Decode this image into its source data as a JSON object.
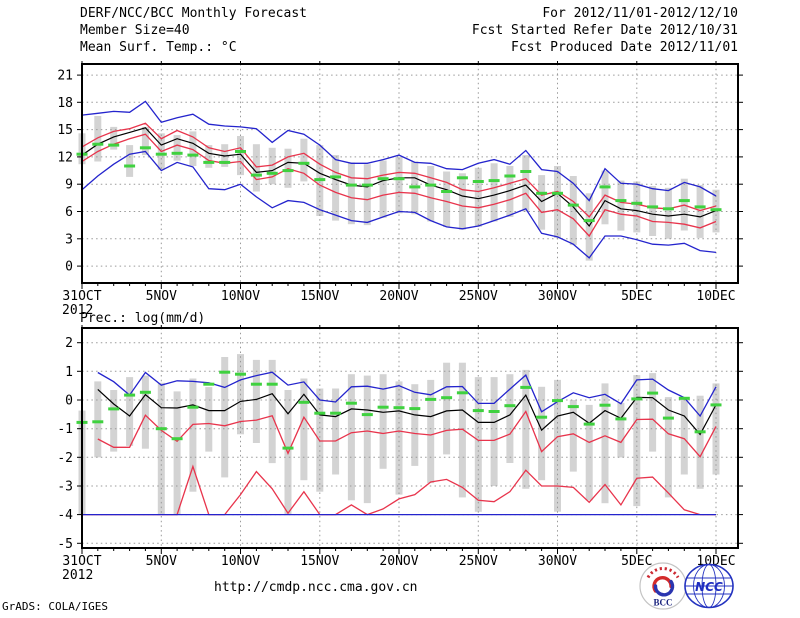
{
  "header": {
    "left": [
      "DERF/NCC/BCC Monthly Forecast",
      "Member Size=40",
      "Mean Surf. Temp.: °C"
    ],
    "right": [
      "For 2012/11/01-2012/12/10",
      "Fcst Started Refer Date 2012/10/31",
      "Fcst Produced Date 2012/11/01"
    ]
  },
  "footer": {
    "url": "http://cmdp.ncc.cma.gov.cn",
    "credit": "GrADS: COLA/IGES",
    "logos": {
      "bcc": "BCC",
      "ncc": "NCC"
    }
  },
  "colors": {
    "blue": "#2424cd",
    "red": "#e8344c",
    "black": "#000000",
    "green": "#3fd13f",
    "bar": "#d3d3d3",
    "grid": "#9a9a9a",
    "frame": "#000000"
  },
  "chart_data": [
    {
      "type": "line",
      "title": "Mean Surf. Temp.: °C",
      "ylabel": "Mean Surf. Temp.: °C",
      "xlabel": "2012  31OCT - 10DEC",
      "ylim": [
        -1.9,
        22.2
      ],
      "grid": true,
      "y_ticks": [
        21,
        18,
        15,
        12,
        9,
        6,
        3,
        0
      ],
      "x_ticks": [
        {
          "day": 0,
          "label": "31OCT",
          "sublabel": "2012"
        },
        {
          "day": 5,
          "label": "5NOV"
        },
        {
          "day": 10,
          "label": "10NOV"
        },
        {
          "day": 15,
          "label": "15NOV"
        },
        {
          "day": 20,
          "label": "20NOV"
        },
        {
          "day": 25,
          "label": "25NOV"
        },
        {
          "day": 30,
          "label": "30NOV"
        },
        {
          "day": 35,
          "label": "5DEC"
        },
        {
          "day": 40,
          "label": "10DEC"
        }
      ],
      "series": [
        {
          "name": "member-max",
          "color": "blue",
          "values": [
            16.6,
            16.8,
            17.0,
            16.9,
            18.1,
            15.8,
            16.3,
            16.7,
            15.6,
            15.4,
            15.3,
            15.1,
            13.6,
            14.9,
            14.5,
            13.3,
            11.7,
            11.3,
            11.3,
            11.7,
            12.2,
            11.4,
            11.3,
            10.7,
            10.6,
            11.3,
            11.7,
            11.2,
            12.7,
            10.6,
            10.4,
            9.1,
            7.2,
            10.7,
            9.1,
            9.0,
            8.5,
            8.3,
            9.2,
            8.7,
            7.7
          ]
        },
        {
          "name": "mean-plus-spread",
          "color": "red",
          "values": [
            13.1,
            14.1,
            14.8,
            15.1,
            15.7,
            14.0,
            14.9,
            14.2,
            13.0,
            12.6,
            13.0,
            10.9,
            11.1,
            12.0,
            12.4,
            11.2,
            10.3,
            9.7,
            9.6,
            10.0,
            10.3,
            10.2,
            9.7,
            9.2,
            8.4,
            8.2,
            8.6,
            9.1,
            9.6,
            7.8,
            8.2,
            7.1,
            5.4,
            7.8,
            7.0,
            6.8,
            6.4,
            6.3,
            6.7,
            6.1,
            6.6
          ]
        },
        {
          "name": "ensemble-mean",
          "color": "black",
          "values": [
            12.2,
            13.4,
            14.2,
            14.7,
            15.2,
            13.3,
            14.0,
            13.5,
            12.4,
            12.1,
            12.3,
            10.3,
            10.5,
            11.4,
            11.3,
            10.2,
            9.5,
            8.9,
            8.7,
            9.4,
            9.7,
            9.7,
            8.9,
            8.4,
            7.7,
            7.4,
            7.8,
            8.3,
            8.9,
            7.1,
            8.0,
            6.5,
            4.4,
            7.2,
            6.3,
            6.1,
            5.7,
            5.5,
            5.7,
            5.4,
            6.1
          ]
        },
        {
          "name": "mean-minus-spread",
          "color": "red",
          "values": [
            11.5,
            12.6,
            13.4,
            14.0,
            14.5,
            12.6,
            13.3,
            12.8,
            11.6,
            11.3,
            11.5,
            9.5,
            9.8,
            10.7,
            10.2,
            8.9,
            8.1,
            7.5,
            7.3,
            7.8,
            8.1,
            8.0,
            7.5,
            7.1,
            6.6,
            6.4,
            6.8,
            7.3,
            8.0,
            5.9,
            6.2,
            5.2,
            3.3,
            6.2,
            5.7,
            5.5,
            4.9,
            4.8,
            4.6,
            4.2,
            4.9
          ]
        },
        {
          "name": "member-min",
          "color": "blue",
          "values": [
            8.4,
            9.9,
            11.2,
            12.3,
            12.6,
            10.5,
            11.4,
            10.9,
            8.5,
            8.4,
            9.0,
            7.6,
            6.4,
            7.2,
            7.0,
            6.2,
            5.6,
            5.0,
            4.8,
            5.4,
            6.0,
            5.9,
            5.0,
            4.3,
            4.1,
            4.4,
            5.0,
            5.6,
            6.3,
            3.6,
            3.2,
            2.4,
            0.9,
            3.3,
            3.3,
            2.9,
            2.4,
            2.3,
            2.5,
            1.7,
            1.5
          ]
        }
      ],
      "observation_dashes": {
        "name": "observation",
        "color": "green",
        "values": [
          12.3,
          13.4,
          13.3,
          11.0,
          13.0,
          12.3,
          12.4,
          12.2,
          11.4,
          11.4,
          12.6,
          10.0,
          10.2,
          10.5,
          11.3,
          9.5,
          9.8,
          8.9,
          8.9,
          9.6,
          9.6,
          8.7,
          8.9,
          8.2,
          9.7,
          9.3,
          9.4,
          9.9,
          10.4,
          8.0,
          8.0,
          6.7,
          5.0,
          8.7,
          7.2,
          6.9,
          6.5,
          6.3,
          7.2,
          6.5,
          6.2
        ]
      },
      "spread_bars": {
        "name": "member-spread-bar",
        "color": "bar",
        "ranges": [
          [
            11.2,
            14.6
          ],
          [
            11.5,
            16.5
          ],
          [
            12.8,
            15.3
          ],
          [
            9.8,
            13.3
          ],
          [
            12.2,
            15.3
          ],
          [
            10.6,
            14.6
          ],
          [
            11.6,
            14.4
          ],
          [
            11.0,
            14.8
          ],
          [
            10.8,
            13.3
          ],
          [
            10.9,
            13.4
          ],
          [
            10.0,
            14.3
          ],
          [
            8.2,
            13.4
          ],
          [
            9.0,
            13.0
          ],
          [
            8.6,
            12.9
          ],
          [
            9.3,
            14.0
          ],
          [
            5.5,
            13.3
          ],
          [
            5.0,
            12.2
          ],
          [
            4.6,
            11.4
          ],
          [
            4.5,
            11.2
          ],
          [
            5.3,
            11.6
          ],
          [
            5.8,
            12.0
          ],
          [
            5.7,
            11.5
          ],
          [
            4.9,
            11.0
          ],
          [
            4.3,
            10.4
          ],
          [
            4.0,
            10.2
          ],
          [
            4.3,
            10.8
          ],
          [
            4.9,
            11.3
          ],
          [
            5.4,
            11.0
          ],
          [
            6.0,
            12.2
          ],
          [
            4.0,
            10.0
          ],
          [
            3.1,
            11.0
          ],
          [
            2.3,
            9.9
          ],
          [
            0.6,
            8.0
          ],
          [
            4.6,
            10.5
          ],
          [
            3.9,
            9.4
          ],
          [
            3.7,
            9.3
          ],
          [
            3.3,
            8.8
          ],
          [
            3.0,
            8.6
          ],
          [
            3.9,
            9.6
          ],
          [
            3.1,
            8.9
          ],
          [
            3.7,
            8.4
          ]
        ]
      }
    },
    {
      "type": "line",
      "title": "Prec.: log(mm/d)",
      "ylabel": "Prec.: log(mm/d)",
      "xlabel": "2012  31OCT - 10DEC",
      "ylim": [
        -5.2,
        2.5
      ],
      "grid": true,
      "y_ticks": [
        2,
        1,
        0,
        -1,
        -2,
        -3,
        -4,
        -5
      ],
      "x_ticks": [
        {
          "day": 0,
          "label": "31OCT",
          "sublabel": "2012"
        },
        {
          "day": 5,
          "label": "5NOV"
        },
        {
          "day": 10,
          "label": "10NOV"
        },
        {
          "day": 15,
          "label": "15NOV"
        },
        {
          "day": 20,
          "label": "20NOV"
        },
        {
          "day": 25,
          "label": "25NOV"
        },
        {
          "day": 30,
          "label": "30NOV"
        },
        {
          "day": 35,
          "label": "5DEC"
        },
        {
          "day": 40,
          "label": "10DEC"
        }
      ],
      "series": [
        {
          "name": "member-max",
          "color": "blue",
          "values": [
            null,
            0.96,
            0.64,
            0.17,
            0.96,
            0.52,
            0.67,
            0.65,
            0.6,
            0.44,
            0.7,
            0.85,
            0.97,
            0.52,
            0.63,
            0.0,
            -0.07,
            0.46,
            0.48,
            0.38,
            0.5,
            0.27,
            0.18,
            0.46,
            0.47,
            -0.12,
            -0.12,
            0.38,
            0.87,
            -0.41,
            -0.06,
            0.25,
            0.08,
            0.2,
            -0.13,
            0.7,
            0.73,
            0.35,
            0.08,
            -0.56,
            0.46
          ]
        },
        {
          "name": "ensemble-mean",
          "color": "black",
          "values": [
            null,
            0.37,
            -0.14,
            -0.56,
            0.19,
            -0.27,
            -0.28,
            -0.17,
            -0.37,
            -0.37,
            -0.05,
            0.02,
            0.22,
            -0.48,
            0.2,
            -0.52,
            -0.58,
            -0.31,
            -0.35,
            -0.43,
            -0.38,
            -0.52,
            -0.58,
            -0.38,
            -0.35,
            -0.78,
            -0.78,
            -0.52,
            0.17,
            -1.05,
            -0.56,
            -0.43,
            -0.81,
            -0.37,
            -0.64,
            0.09,
            0.08,
            -0.35,
            -0.56,
            -1.2,
            -0.17
          ]
        },
        {
          "name": "mean-minus-spread",
          "color": "red",
          "values": [
            null,
            -1.36,
            -1.65,
            -1.65,
            -0.53,
            -1.06,
            -1.44,
            -0.85,
            -0.82,
            -0.9,
            -0.75,
            -0.7,
            -0.55,
            -1.86,
            -0.6,
            -1.43,
            -1.43,
            -1.14,
            -1.08,
            -1.17,
            -1.08,
            -1.17,
            -1.22,
            -1.06,
            -1.02,
            -1.41,
            -1.41,
            -1.19,
            -0.4,
            -1.8,
            -1.28,
            -1.18,
            -1.48,
            -1.25,
            -1.48,
            -0.68,
            -0.67,
            -1.18,
            -1.35,
            -1.98,
            -0.92
          ]
        },
        {
          "name": "lower-envelope",
          "color": "red",
          "values": [
            -4,
            -4,
            -4,
            -4,
            -4,
            -4,
            -4,
            -2.32,
            -4,
            -4,
            -3.3,
            -2.5,
            -3.1,
            -3.95,
            -3.2,
            -4,
            -4,
            -3.66,
            -4,
            -3.8,
            -3.45,
            -3.3,
            -2.86,
            -2.77,
            -3.05,
            -3.5,
            -3.55,
            -3.2,
            -2.45,
            -3.0,
            -3.0,
            -3.05,
            -3.57,
            -2.95,
            -3.66,
            -2.73,
            -2.69,
            -3.25,
            -3.83,
            -4,
            -4
          ]
        },
        {
          "name": "member-min",
          "color": "blue",
          "values": [
            -4,
            -4,
            -4,
            -4,
            -4,
            -4,
            -4,
            -4,
            -4,
            -4,
            -4,
            -4,
            -4,
            -4,
            -4,
            -4,
            -4,
            -4,
            -4,
            -4,
            -4,
            -4,
            -4,
            -4,
            -4,
            -4,
            -4,
            -4,
            -4,
            -4,
            -4,
            -4,
            -4,
            -4,
            -4,
            -4,
            -4,
            -4,
            -4,
            -4,
            -4
          ]
        }
      ],
      "observation_dashes": {
        "name": "observation",
        "color": "green",
        "values": [
          -0.78,
          -0.76,
          -0.31,
          0.17,
          0.27,
          -1.0,
          -1.35,
          -0.25,
          0.55,
          0.97,
          0.9,
          0.55,
          0.55,
          -1.68,
          -0.08,
          -0.46,
          -0.46,
          -0.11,
          -0.51,
          -0.25,
          -0.27,
          -0.3,
          0.02,
          0.08,
          0.25,
          -0.37,
          -0.4,
          -0.2,
          0.44,
          -0.6,
          -0.02,
          -0.23,
          -0.84,
          -0.18,
          -0.66,
          0.04,
          0.24,
          -0.63,
          0.06,
          -1.11,
          -0.17
        ]
      },
      "spread_bars": {
        "name": "member-spread-bar",
        "color": "bar",
        "ranges": [
          [
            -4,
            -0.37
          ],
          [
            -2.0,
            0.65
          ],
          [
            -1.8,
            0.35
          ],
          [
            -1.6,
            0.8
          ],
          [
            -1.7,
            0.85
          ],
          [
            -4,
            0.6
          ],
          [
            -4,
            0.3
          ],
          [
            -3.2,
            0.75
          ],
          [
            -1.8,
            0.45
          ],
          [
            -2.7,
            1.5
          ],
          [
            -1.2,
            1.6
          ],
          [
            -1.5,
            1.4
          ],
          [
            -2.2,
            1.4
          ],
          [
            -4,
            0.35
          ],
          [
            -2.8,
            0.75
          ],
          [
            -3.2,
            0.4
          ],
          [
            -2.6,
            0.4
          ],
          [
            -3.5,
            0.9
          ],
          [
            -3.6,
            0.85
          ],
          [
            -2.4,
            0.9
          ],
          [
            -3.3,
            0.65
          ],
          [
            -2.3,
            0.55
          ],
          [
            -2.9,
            0.7
          ],
          [
            -1.9,
            1.3
          ],
          [
            -3.4,
            1.3
          ],
          [
            -3.9,
            0.8
          ],
          [
            -3.0,
            0.8
          ],
          [
            -2.2,
            0.9
          ],
          [
            -3.1,
            1.05
          ],
          [
            -2.8,
            0.46
          ],
          [
            -3.9,
            0.7
          ],
          [
            -2.5,
            0.0
          ],
          [
            -3.5,
            -0.17
          ],
          [
            -3.6,
            0.58
          ],
          [
            -2.0,
            -0.1
          ],
          [
            -3.7,
            0.87
          ],
          [
            -1.8,
            0.94
          ],
          [
            -3.4,
            0.1
          ],
          [
            -2.6,
            0.08
          ],
          [
            -3.1,
            0.15
          ],
          [
            -2.6,
            0.58
          ]
        ]
      }
    }
  ]
}
